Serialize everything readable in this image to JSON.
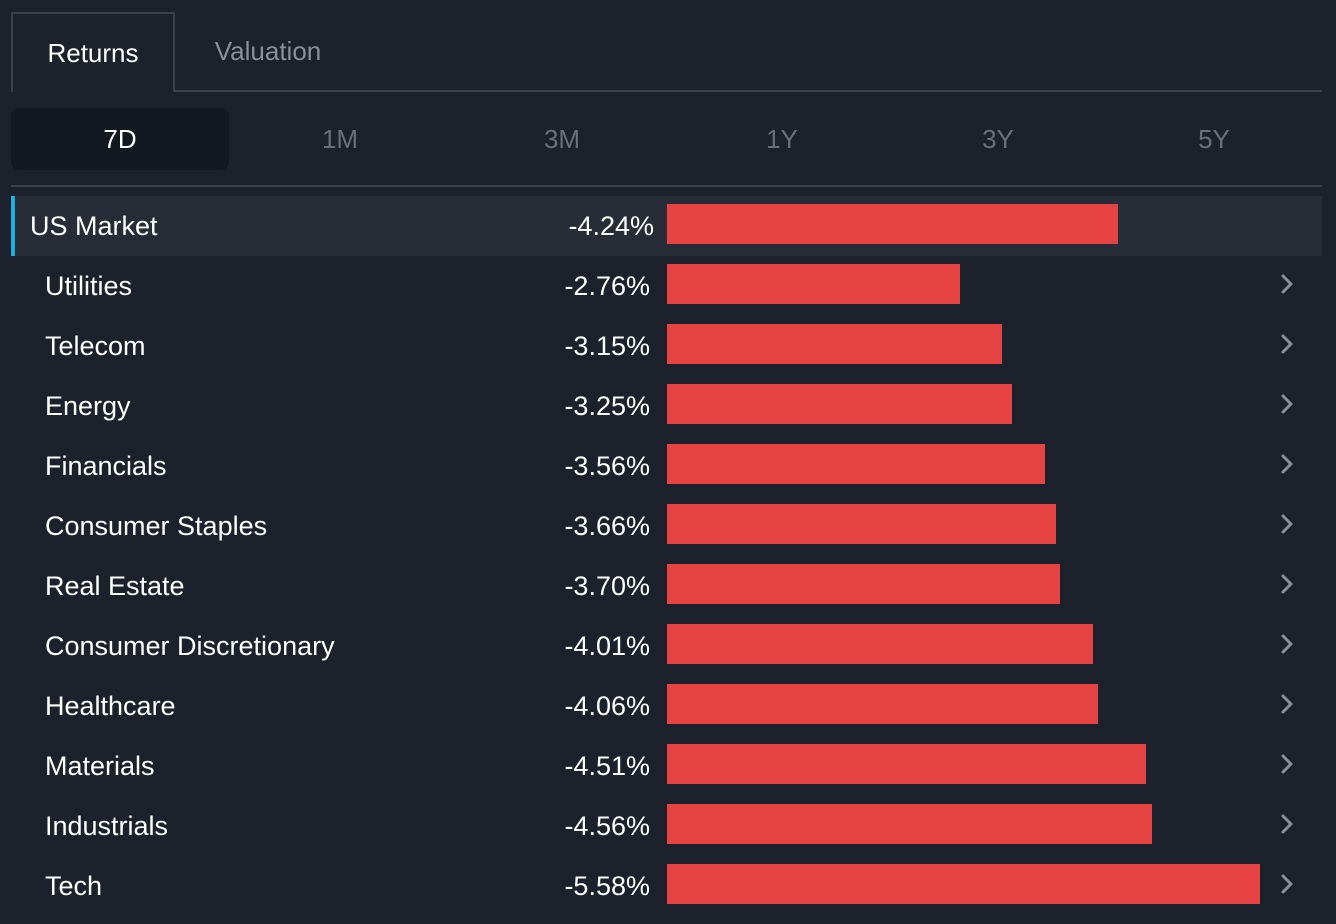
{
  "tabs": [
    {
      "label": "Returns",
      "active": true
    },
    {
      "label": "Valuation",
      "active": false
    }
  ],
  "periods": [
    {
      "label": "7D",
      "active": true
    },
    {
      "label": "1M",
      "active": false
    },
    {
      "label": "3M",
      "active": false
    },
    {
      "label": "1Y",
      "active": false
    },
    {
      "label": "3Y",
      "active": false
    },
    {
      "label": "5Y",
      "active": false
    }
  ],
  "colors": {
    "negative_bar": "#e64343",
    "highlight_accent": "#1fb0dd",
    "background": "#1c212b"
  },
  "chart_data": {
    "type": "bar",
    "categories": [
      "US Market",
      "Utilities",
      "Telecom",
      "Energy",
      "Financials",
      "Consumer Staples",
      "Real Estate",
      "Consumer Discretionary",
      "Healthcare",
      "Materials",
      "Industrials",
      "Tech"
    ],
    "values": [
      -4.24,
      -2.76,
      -3.15,
      -3.25,
      -3.56,
      -3.66,
      -3.7,
      -4.01,
      -4.06,
      -4.51,
      -4.56,
      -5.58
    ],
    "labels": [
      "-4.24%",
      "-2.76%",
      "-3.15%",
      "-3.25%",
      "-3.56%",
      "-3.66%",
      "-3.70%",
      "-4.01%",
      "-4.06%",
      "-4.51%",
      "-4.56%",
      "-5.58%"
    ],
    "highlighted_category": "US Market",
    "orientation": "horizontal",
    "value_abs_max": 5.58
  },
  "row_chevron_icon": "chevron-right-icon"
}
